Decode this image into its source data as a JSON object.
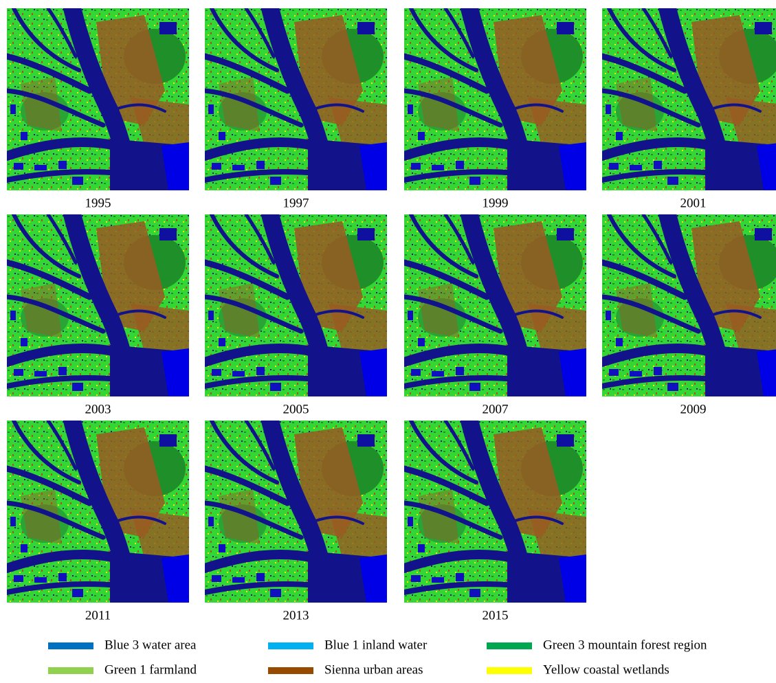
{
  "figure": {
    "panels": [
      {
        "label": "1995"
      },
      {
        "label": "1997"
      },
      {
        "label": "1999"
      },
      {
        "label": "2001"
      },
      {
        "label": "2003"
      },
      {
        "label": "2005"
      },
      {
        "label": "2007"
      },
      {
        "label": "2009"
      },
      {
        "label": "2011"
      },
      {
        "label": "2013"
      },
      {
        "label": "2015"
      }
    ],
    "legend": [
      {
        "label": "Blue 3 water area",
        "color": "#0070c0"
      },
      {
        "label": "Blue 1 inland water",
        "color": "#00b0f0"
      },
      {
        "label": "Green 3 mountain forest region",
        "color": "#00a650"
      },
      {
        "label": "Green 1 farmland",
        "color": "#92d050"
      },
      {
        "label": "Sienna urban areas",
        "color": "#964b00"
      },
      {
        "label": "Yellow coastal wetlands",
        "color": "#ffff00"
      }
    ]
  }
}
